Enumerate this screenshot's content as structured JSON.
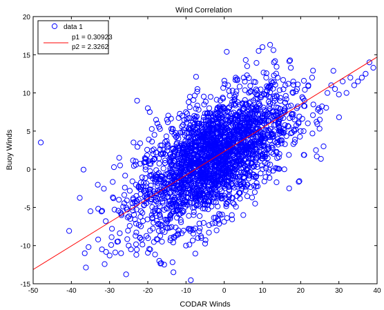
{
  "chart_data": {
    "type": "scatter",
    "title": "Wind Correlation",
    "xlabel": "CODAR Winds",
    "ylabel": "Buoy Winds",
    "xlim": [
      -50,
      40
    ],
    "ylim": [
      -15,
      20
    ],
    "xticks": [
      -50,
      -40,
      -30,
      -20,
      -10,
      0,
      10,
      20,
      30,
      40
    ],
    "yticks": [
      -15,
      -10,
      -5,
      0,
      5,
      10,
      15,
      20
    ],
    "xtick_labels": [
      "-50",
      "-40",
      "-30",
      "-20",
      "-10",
      "0",
      "10",
      "20",
      "30",
      "40"
    ],
    "ytick_labels": [
      "-15",
      "-10",
      "-5",
      "0",
      "5",
      "10",
      "15",
      "20"
    ],
    "grid": false,
    "legend_position": "top-left",
    "series": [
      {
        "name": "data 1",
        "marker": "open-circle",
        "color": "#0000ff",
        "approx_point_count": 2500,
        "cloud": {
          "center_x": -3,
          "center_y": 1.5,
          "sd_x": 10,
          "sd_y": 4.5,
          "correlation": 0.6
        },
        "points": [
          [
            -48,
            3.5
          ],
          [
            -36.5,
            -11
          ],
          [
            -35.5,
            -10.2
          ],
          [
            -35,
            -5.5
          ],
          [
            -33,
            -9.2
          ],
          [
            -32,
            -10.5
          ],
          [
            -31,
            -6.8
          ],
          [
            -30,
            -11.3
          ],
          [
            -29,
            -3.8
          ],
          [
            -28,
            -9.5
          ],
          [
            -27,
            -11
          ],
          [
            -26,
            -2.4
          ],
          [
            -25,
            -10
          ],
          [
            -24,
            -5
          ],
          [
            -23,
            -11.2
          ],
          [
            -22,
            -2.6
          ],
          [
            -21,
            -4.2
          ],
          [
            -20,
            8
          ],
          [
            -19.5,
            7.5
          ],
          [
            -18.5,
            -7
          ],
          [
            -17.5,
            6
          ],
          [
            -17,
            -12
          ],
          [
            -16.5,
            -12.3
          ],
          [
            -16,
            2
          ],
          [
            -15,
            6.5
          ],
          [
            -14,
            -9
          ],
          [
            -13,
            4.5
          ],
          [
            -12,
            -8
          ],
          [
            -11,
            7
          ],
          [
            -10,
            -10
          ],
          [
            -9,
            9.5
          ],
          [
            -8,
            -6
          ],
          [
            -7,
            10.5
          ],
          [
            -6,
            -9
          ],
          [
            -5,
            3
          ],
          [
            -4,
            -8.3
          ],
          [
            -3,
            6
          ],
          [
            -2,
            -8
          ],
          [
            -1,
            9
          ],
          [
            0,
            -2
          ],
          [
            1,
            11
          ],
          [
            2,
            -6
          ],
          [
            3,
            12
          ],
          [
            4,
            5
          ],
          [
            5,
            -6
          ],
          [
            6,
            13.5
          ],
          [
            7,
            8
          ],
          [
            8,
            -3
          ],
          [
            9,
            15.5
          ],
          [
            10,
            16
          ],
          [
            11,
            12
          ],
          [
            12,
            16.3
          ],
          [
            13,
            14
          ],
          [
            14,
            12
          ],
          [
            15,
            7
          ],
          [
            16,
            11
          ],
          [
            17,
            -2.5
          ],
          [
            18,
            10
          ],
          [
            19,
            8
          ],
          [
            20,
            5
          ],
          [
            21,
            9
          ],
          [
            22,
            11
          ],
          [
            23,
            12
          ],
          [
            24,
            2.5
          ],
          [
            25,
            6.5
          ],
          [
            26,
            3
          ],
          [
            27,
            10
          ],
          [
            28,
            11
          ],
          [
            29,
            10.5
          ],
          [
            30,
            9.8
          ],
          [
            31,
            11.5
          ],
          [
            32,
            10
          ],
          [
            33,
            12
          ],
          [
            34,
            11
          ],
          [
            35,
            11.5
          ],
          [
            36,
            12
          ],
          [
            37,
            12.5
          ],
          [
            38,
            14
          ],
          [
            39,
            13.3
          ],
          [
            -18,
            -4
          ],
          [
            -14,
            -6
          ],
          [
            -10,
            1
          ],
          [
            -6,
            -4
          ],
          [
            -2,
            4
          ],
          [
            2,
            6
          ],
          [
            6,
            0
          ],
          [
            10,
            2
          ]
        ]
      },
      {
        "name": "",
        "type": "line",
        "color": "#ff0000",
        "slope": 0.30923,
        "intercept": 2.3262
      }
    ],
    "legend": {
      "entries": [
        "data 1"
      ],
      "fit_labels": [
        "p1 = 0.30923",
        "p2 = 2.3262"
      ]
    }
  }
}
